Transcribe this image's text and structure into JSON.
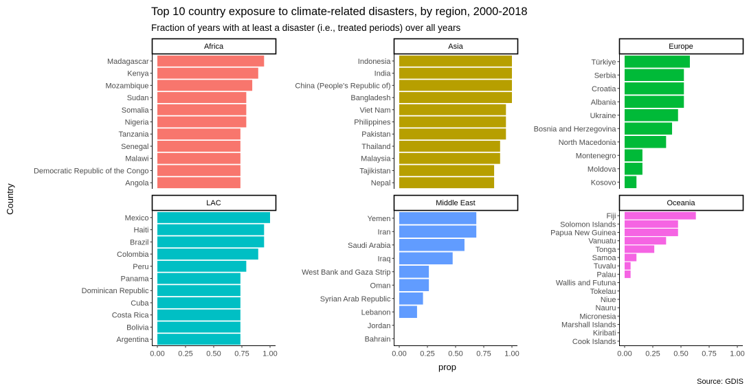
{
  "title": "Top 10 country exposure to climate-related disasters, by region, 2000-2018",
  "subtitle": "Fraction of years with at least a disaster (i.e., treated periods) over all years",
  "caption": "Source: GDIS",
  "chart_data": {
    "type": "bar",
    "orientation": "horizontal",
    "xlabel": "prop",
    "ylabel": "Country",
    "xlim": [
      0,
      1
    ],
    "x_ticks": [
      "0.00",
      "0.25",
      "0.50",
      "0.75",
      "1.00"
    ],
    "grid": false,
    "legend": "none",
    "panels": [
      {
        "region": "Africa",
        "color": "#F8766D",
        "categories": [
          "Madagascar",
          "Kenya",
          "Mozambique",
          "Sudan",
          "Somalia",
          "Nigeria",
          "Tanzania",
          "Senegal",
          "Malawi",
          "Democratic Republic of the Congo",
          "Angola"
        ],
        "values": [
          0.947,
          0.895,
          0.842,
          0.789,
          0.789,
          0.789,
          0.737,
          0.737,
          0.737,
          0.737,
          0.737
        ]
      },
      {
        "region": "Asia",
        "color": "#B79F00",
        "categories": [
          "Indonesia",
          "India",
          "China (People's Republic of)",
          "Bangladesh",
          "Viet Nam",
          "Philippines",
          "Pakistan",
          "Thailand",
          "Malaysia",
          "Tajikistan",
          "Nepal"
        ],
        "values": [
          1.0,
          1.0,
          1.0,
          1.0,
          0.947,
          0.947,
          0.947,
          0.895,
          0.895,
          0.842,
          0.842
        ]
      },
      {
        "region": "Europe",
        "color": "#00BA38",
        "categories": [
          "Türkiye",
          "Serbia",
          "Croatia",
          "Albania",
          "Ukraine",
          "Bosnia and Herzegovina",
          "North Macedonia",
          "Montenegro",
          "Moldova",
          "Kosovo"
        ],
        "values": [
          0.579,
          0.526,
          0.526,
          0.526,
          0.474,
          0.421,
          0.368,
          0.158,
          0.158,
          0.105
        ]
      },
      {
        "region": "LAC",
        "color": "#00BFC4",
        "categories": [
          "Mexico",
          "Haiti",
          "Brazil",
          "Colombia",
          "Peru",
          "Panama",
          "Dominican Republic",
          "Cuba",
          "Costa Rica",
          "Bolivia",
          "Argentina"
        ],
        "values": [
          1.0,
          0.947,
          0.947,
          0.895,
          0.789,
          0.737,
          0.737,
          0.737,
          0.737,
          0.737,
          0.737
        ]
      },
      {
        "region": "Middle East",
        "color": "#619CFF",
        "categories": [
          "Yemen",
          "Iran",
          "Saudi Arabia",
          "Iraq",
          "West Bank and Gaza Strip",
          "Oman",
          "Syrian Arab Republic",
          "Lebanon",
          "Jordan",
          "Bahrain"
        ],
        "values": [
          0.684,
          0.684,
          0.579,
          0.474,
          0.263,
          0.263,
          0.211,
          0.158,
          0,
          0
        ]
      },
      {
        "region": "Oceania",
        "color": "#F564E3",
        "categories": [
          "Fiji",
          "Solomon Islands",
          "Papua New Guinea",
          "Vanuatu",
          "Tonga",
          "Samoa",
          "Tuvalu",
          "Palau",
          "Wallis and Futuna",
          "Tokelau",
          "Niue",
          "Nauru",
          "Micronesia",
          "Marshall Islands",
          "Kiribati",
          "Cook Islands"
        ],
        "values": [
          0.632,
          0.474,
          0.474,
          0.368,
          0.263,
          0.105,
          0.053,
          0.053,
          0,
          0,
          0,
          0,
          0,
          0,
          0,
          0
        ]
      }
    ]
  }
}
